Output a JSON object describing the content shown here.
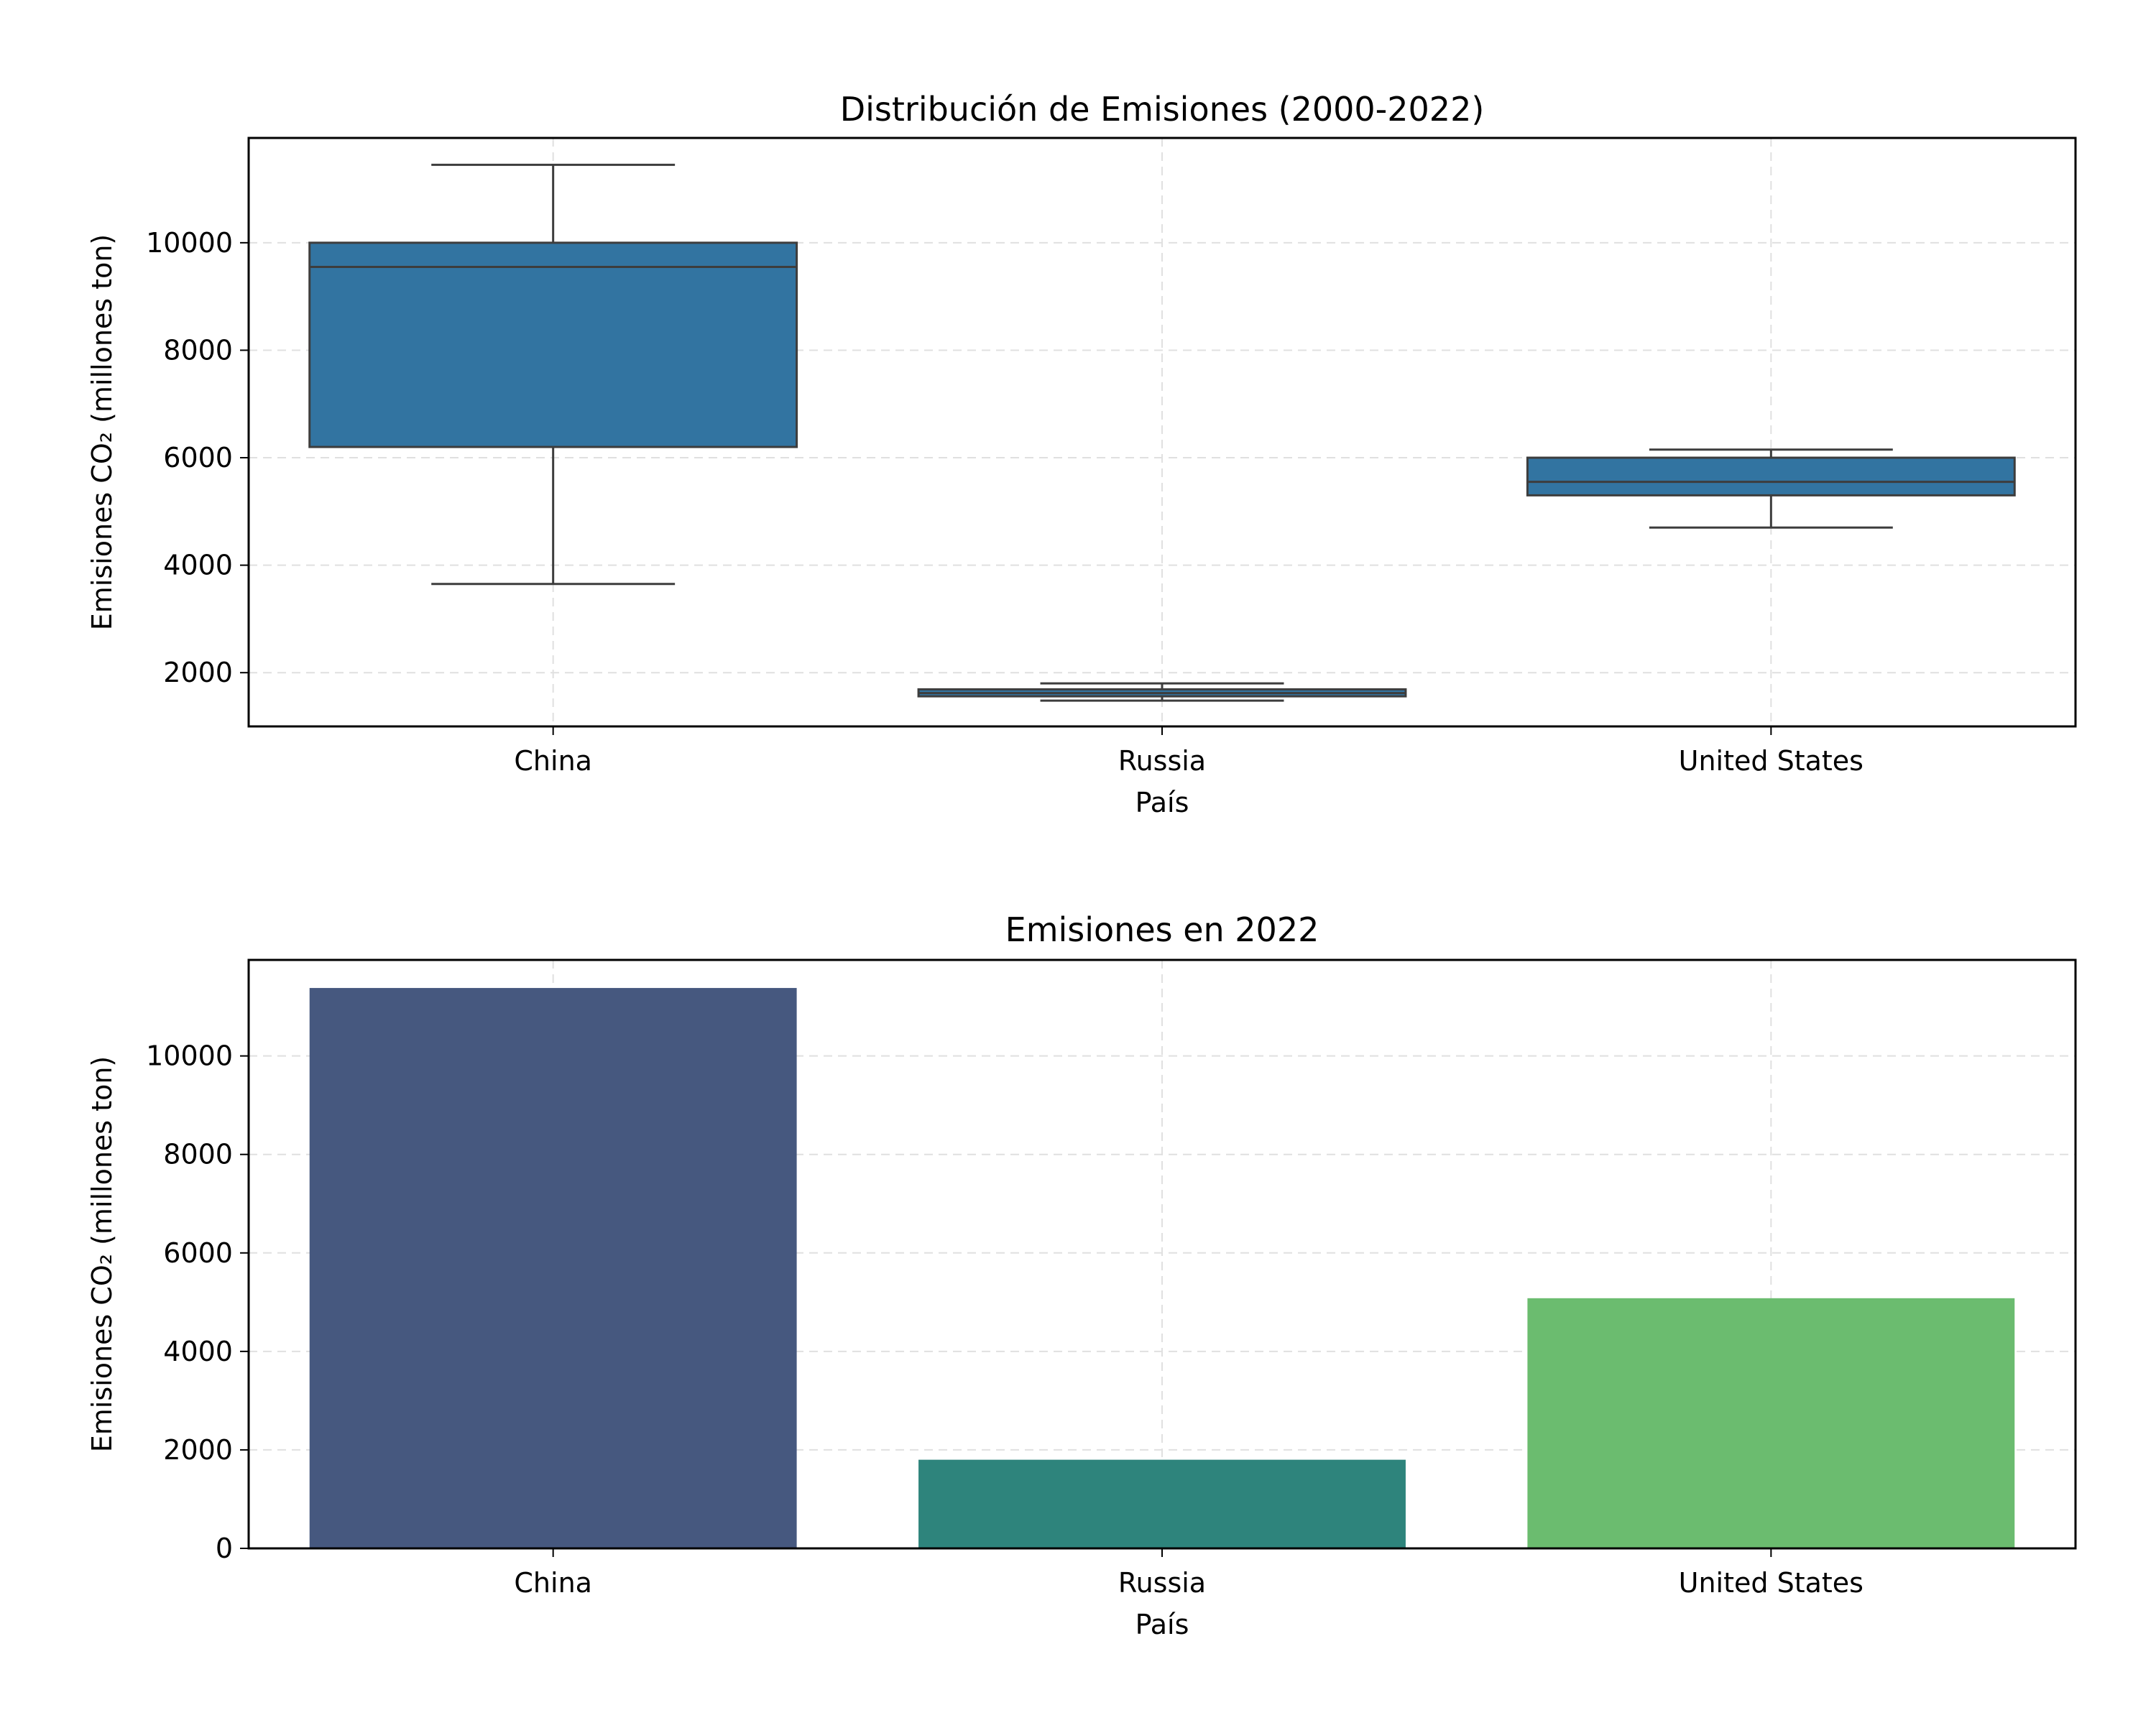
{
  "chart_data": [
    {
      "type": "boxplot",
      "title": "Distribución de Emisiones (2000-2022)",
      "xlabel": "País",
      "ylabel": "Emisiones CO₂ (millones ton)",
      "categories": [
        "China",
        "Russia",
        "United States"
      ],
      "boxes": [
        {
          "name": "China",
          "whisker_low": 3650,
          "q1": 6200,
          "median": 9550,
          "q3": 10000,
          "whisker_high": 11450
        },
        {
          "name": "Russia",
          "whisker_low": 1480,
          "q1": 1560,
          "median": 1620,
          "q3": 1690,
          "whisker_high": 1800
        },
        {
          "name": "United States",
          "whisker_low": 4700,
          "q1": 5300,
          "median": 5550,
          "q3": 6000,
          "whisker_high": 6150
        }
      ],
      "box_color": "#3274a1",
      "yticks": [
        2000,
        4000,
        6000,
        8000,
        10000
      ],
      "ylim": [
        1000,
        11950
      ],
      "grid": true
    },
    {
      "type": "bar",
      "title": "Emisiones en 2022",
      "xlabel": "País",
      "ylabel": "Emisiones CO₂ (millones ton)",
      "categories": [
        "China",
        "Russia",
        "United States"
      ],
      "values": [
        11380,
        1800,
        5080
      ],
      "colors": [
        "#46587f",
        "#2e847c",
        "#6bbc6f"
      ],
      "yticks": [
        0,
        2000,
        4000,
        6000,
        8000,
        10000
      ],
      "ylim": [
        0,
        11950
      ],
      "grid": true
    }
  ]
}
